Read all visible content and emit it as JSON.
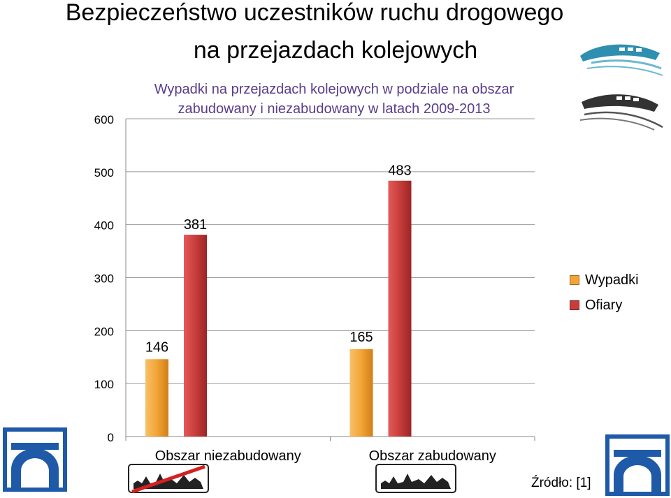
{
  "slide": {
    "title_line1": "Bezpieczeństwo uczestników ruchu drogowego",
    "title_line2": "na przejazdach kolejowych"
  },
  "chart_data": {
    "type": "bar",
    "title_line1": "Wypadki na przejazdach kolejowych w podziale na obszar",
    "title_line2": "zabudowany i niezabudowany w latach 2009-2013",
    "categories": [
      "Obszar niezabudowany",
      "Obszar zabudowany"
    ],
    "series": [
      {
        "name": "Wypadki",
        "values": [
          146,
          165
        ],
        "color": "#f0a030"
      },
      {
        "name": "Ofiary",
        "values": [
          381,
          483
        ],
        "color": "#c0393b"
      }
    ],
    "ylim": [
      0,
      600
    ],
    "yticks": [
      0,
      100,
      200,
      300,
      400,
      500,
      600
    ],
    "grid": true,
    "legend": "right",
    "title_color": "#5a3d8a"
  },
  "source_label": "Źródło: [1]",
  "icons": [
    "train-icon",
    "railway-crossing-sign-icon",
    "settlement-crossed-icon",
    "settlement-icon"
  ]
}
